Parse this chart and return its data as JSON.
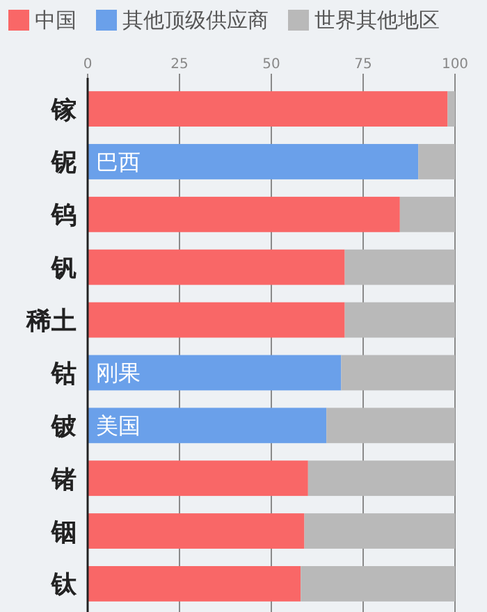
{
  "chart_data": {
    "type": "bar",
    "orientation": "horizontal",
    "stacked": true,
    "categories": [
      "镓",
      "铌",
      "钨",
      "钒",
      "稀土",
      "钴",
      "铍",
      "锗",
      "铟",
      "钛"
    ],
    "series": [
      {
        "name": "中国",
        "color": "#f96767",
        "values": [
          98,
          null,
          85,
          70,
          70,
          null,
          null,
          60,
          59,
          58
        ]
      },
      {
        "name": "其他顶级供应商",
        "color": "#6aa0ea",
        "values": [
          null,
          90,
          null,
          null,
          null,
          69,
          65,
          null,
          null,
          null
        ],
        "value_labels": [
          null,
          "巴西",
          null,
          null,
          null,
          "刚果",
          "美国",
          null,
          null,
          null
        ]
      },
      {
        "name": "世界其他地区",
        "color": "#b9b9b9",
        "values": [
          2,
          10,
          15,
          30,
          30,
          31,
          35,
          40,
          41,
          42
        ]
      }
    ],
    "xlim": [
      0,
      100
    ],
    "xticks": [
      0,
      25,
      50,
      75,
      100
    ],
    "grid": "x",
    "legend": "top"
  }
}
